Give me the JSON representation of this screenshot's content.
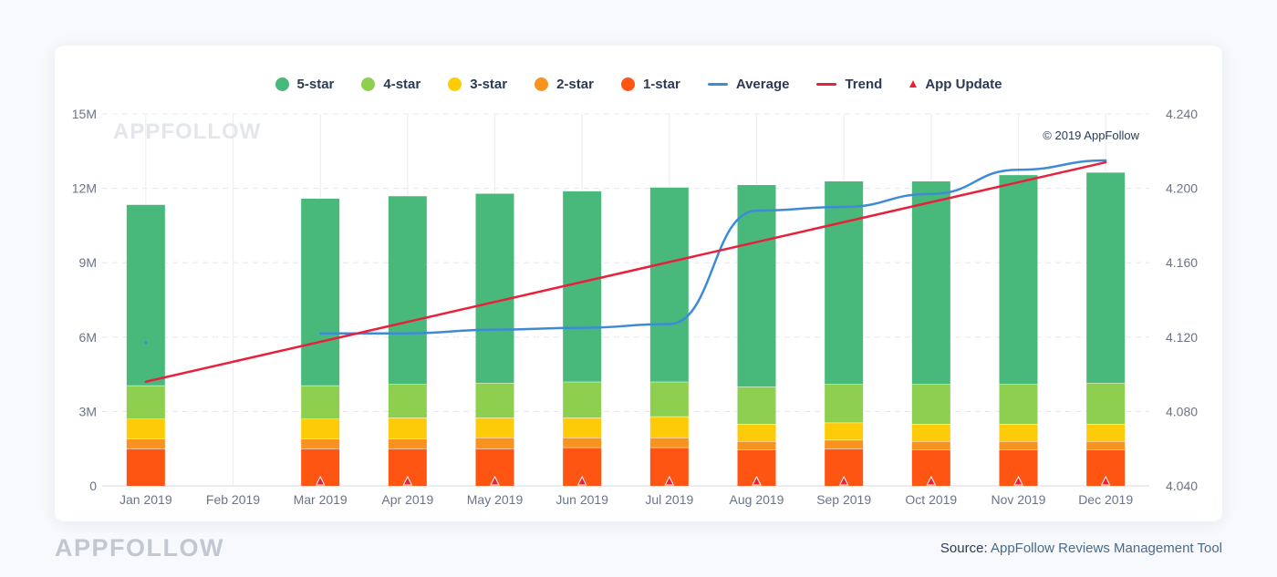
{
  "footer": {
    "brand": "APPFOLLOW",
    "source_label": "Source:",
    "source_text": "AppFollow Reviews Management Tool"
  },
  "colors": {
    "five_star": "#48b97a",
    "four_star": "#8ecf50",
    "three_star": "#fecb08",
    "two_star": "#f7931e",
    "one_star": "#fe5513",
    "average": "#3d8bd6",
    "trend": "#e8203c",
    "app_update": "#e8203c"
  },
  "legend": [
    {
      "label": "5-star",
      "kind": "dot",
      "color_key": "five_star"
    },
    {
      "label": "4-star",
      "kind": "dot",
      "color_key": "four_star"
    },
    {
      "label": "3-star",
      "kind": "dot",
      "color_key": "three_star"
    },
    {
      "label": "2-star",
      "kind": "dot",
      "color_key": "two_star"
    },
    {
      "label": "1-star",
      "kind": "dot",
      "color_key": "one_star"
    },
    {
      "label": "Average",
      "kind": "line",
      "color_key": "average"
    },
    {
      "label": "Trend",
      "kind": "line",
      "color_key": "trend"
    },
    {
      "label": "App Update",
      "kind": "triangle",
      "color_key": "app_update"
    }
  ],
  "chart_data": {
    "type": "bar",
    "stacked": true,
    "watermark": "APPFOLLOW",
    "copyright": "© 2019 AppFollow",
    "categories": [
      "Jan 2019",
      "Feb 2019",
      "Mar 2019",
      "Apr 2019",
      "May 2019",
      "Jun 2019",
      "Jul 2019",
      "Aug 2019",
      "Sep 2019",
      "Oct 2019",
      "Nov 2019",
      "Dec 2019"
    ],
    "ylim": [
      0,
      15000000
    ],
    "y_ticks": [
      0,
      3000000,
      6000000,
      9000000,
      12000000,
      15000000
    ],
    "y_tick_labels": [
      "0",
      "3M",
      "6M",
      "9M",
      "12M",
      "15M"
    ],
    "y2lim": [
      4.04,
      4.24
    ],
    "y2_ticks": [
      4.04,
      4.08,
      4.12,
      4.16,
      4.2,
      4.24
    ],
    "y2_tick_labels": [
      "4.040",
      "4.080",
      "4.120",
      "4.160",
      "4.200",
      "4.240"
    ],
    "grid": true,
    "legend_position": "top-center",
    "series": [
      {
        "name": "1-star",
        "color_key": "one_star",
        "values": [
          1500000,
          null,
          1500000,
          1500000,
          1500000,
          1550000,
          1550000,
          1450000,
          1500000,
          1450000,
          1450000,
          1450000
        ]
      },
      {
        "name": "2-star",
        "color_key": "two_star",
        "values": [
          400000,
          null,
          400000,
          400000,
          450000,
          400000,
          400000,
          350000,
          350000,
          350000,
          350000,
          350000
        ]
      },
      {
        "name": "3-star",
        "color_key": "three_star",
        "values": [
          800000,
          null,
          800000,
          850000,
          800000,
          800000,
          850000,
          700000,
          700000,
          700000,
          700000,
          700000
        ]
      },
      {
        "name": "4-star",
        "color_key": "four_star",
        "values": [
          1350000,
          null,
          1350000,
          1350000,
          1400000,
          1450000,
          1400000,
          1500000,
          1550000,
          1600000,
          1600000,
          1650000
        ]
      },
      {
        "name": "5-star",
        "color_key": "five_star",
        "values": [
          7300000,
          null,
          7550000,
          7600000,
          7650000,
          7700000,
          7850000,
          8150000,
          8200000,
          8200000,
          8450000,
          8500000
        ]
      }
    ],
    "average": {
      "name": "Average",
      "axis": "right",
      "isolated_point": {
        "x": "Jan 2019",
        "y": 4.117
      },
      "values": [
        null,
        null,
        4.122,
        4.122,
        4.124,
        4.125,
        4.127,
        4.188,
        4.19,
        4.197,
        4.21,
        4.215
      ]
    },
    "trend": {
      "name": "Trend",
      "axis": "right",
      "start": {
        "x": "Jan 2019",
        "y": 4.096
      },
      "end": {
        "x": "Dec 2019",
        "y": 4.214
      }
    },
    "app_updates": [
      "Mar 2019",
      "Apr 2019",
      "May 2019",
      "Jun 2019",
      "Jul 2019",
      "Aug 2019",
      "Sep 2019",
      "Oct 2019",
      "Nov 2019",
      "Dec 2019"
    ]
  }
}
